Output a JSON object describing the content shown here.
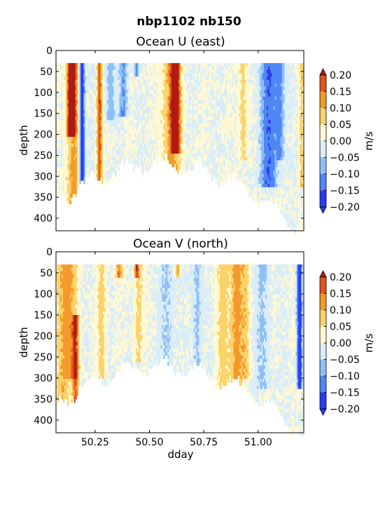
{
  "figure": {
    "suptitle": "nbp1102 nb150"
  },
  "chart_data": [
    {
      "type": "heatmap",
      "title": "Ocean U (east)",
      "xlabel": "",
      "ylabel": "depth",
      "xlim": [
        50.07,
        51.21
      ],
      "ylim": [
        430,
        0
      ],
      "xticks": [
        50.25,
        50.5,
        50.75,
        51.0
      ],
      "xtick_labels": [
        "",
        "",
        "",
        ""
      ],
      "yticks": [
        0,
        50,
        100,
        150,
        200,
        250,
        300,
        350,
        400
      ],
      "colorbar": {
        "label": "m/s",
        "levels": [
          -0.2,
          -0.15,
          -0.1,
          -0.05,
          0.0,
          0.05,
          0.1,
          0.15,
          0.2
        ],
        "tick_labels": [
          "−0.20",
          "−0.15",
          "−0.10",
          "−0.05",
          "0.00",
          "0.05",
          "0.10",
          "0.15",
          "0.20"
        ],
        "colors": [
          "#2a3cf2",
          "#4f86f4",
          "#8ec0f5",
          "#d9edf9",
          "#fff8d4",
          "#fad46a",
          "#f49a2c",
          "#e0521e",
          "#b01a12"
        ]
      },
      "features": [
        {
          "x": 50.14,
          "v": 0.22,
          "w": 0.018,
          "top": 30,
          "bottom": 200
        },
        {
          "x": 50.15,
          "v": 0.12,
          "w": 0.03,
          "top": 30,
          "bottom": 420
        },
        {
          "x": 50.19,
          "v": -0.22,
          "w": 0.012,
          "top": 30,
          "bottom": 420
        },
        {
          "x": 50.27,
          "v": 0.18,
          "w": 0.012,
          "top": 30,
          "bottom": 335
        },
        {
          "x": 50.32,
          "v": -0.08,
          "w": 0.02,
          "top": 30,
          "bottom": 160
        },
        {
          "x": 50.38,
          "v": -0.1,
          "w": 0.02,
          "top": 30,
          "bottom": 150
        },
        {
          "x": 50.44,
          "v": -0.12,
          "w": 0.01,
          "top": 30,
          "bottom": 60
        },
        {
          "x": 50.62,
          "v": 0.22,
          "w": 0.02,
          "top": 30,
          "bottom": 240
        },
        {
          "x": 50.6,
          "v": 0.12,
          "w": 0.04,
          "top": 30,
          "bottom": 320
        },
        {
          "x": 50.93,
          "v": 0.07,
          "w": 0.02,
          "top": 30,
          "bottom": 260
        },
        {
          "x": 51.05,
          "v": -0.14,
          "w": 0.04,
          "top": 30,
          "bottom": 320
        },
        {
          "x": 51.1,
          "v": -0.1,
          "w": 0.02,
          "top": 30,
          "bottom": 260
        },
        {
          "x": 51.2,
          "v": 0.08,
          "w": 0.01,
          "top": 30,
          "bottom": 320
        }
      ]
    },
    {
      "type": "heatmap",
      "title": "Ocean V (north)",
      "xlabel": "dday",
      "ylabel": "depth",
      "xlim": [
        50.07,
        51.21
      ],
      "ylim": [
        430,
        0
      ],
      "xticks": [
        50.25,
        50.5,
        50.75,
        51.0
      ],
      "xtick_labels": [
        "50.25",
        "50.50",
        "50.75",
        "51.00"
      ],
      "yticks": [
        0,
        50,
        100,
        150,
        200,
        250,
        300,
        350,
        400
      ],
      "colorbar": {
        "label": "m/s",
        "levels": [
          -0.2,
          -0.15,
          -0.1,
          -0.05,
          0.0,
          0.05,
          0.1,
          0.15,
          0.2
        ],
        "tick_labels": [
          "−0.20",
          "−0.15",
          "−0.10",
          "−0.05",
          "0.00",
          "0.05",
          "0.10",
          "0.15",
          "0.20"
        ],
        "colors": [
          "#2a3cf2",
          "#4f86f4",
          "#8ec0f5",
          "#d9edf9",
          "#fff8d4",
          "#fad46a",
          "#f49a2c",
          "#e0521e",
          "#b01a12"
        ]
      },
      "features": [
        {
          "x": 50.1,
          "v": 0.1,
          "w": 0.03,
          "top": 30,
          "bottom": 400
        },
        {
          "x": 50.16,
          "v": 0.16,
          "w": 0.015,
          "top": 150,
          "bottom": 420
        },
        {
          "x": 50.14,
          "v": 0.09,
          "w": 0.03,
          "top": 30,
          "bottom": 300
        },
        {
          "x": 50.28,
          "v": 0.07,
          "w": 0.02,
          "top": 30,
          "bottom": 300
        },
        {
          "x": 50.36,
          "v": 0.15,
          "w": 0.015,
          "top": 30,
          "bottom": 60
        },
        {
          "x": 50.44,
          "v": 0.15,
          "w": 0.01,
          "top": 30,
          "bottom": 55
        },
        {
          "x": 50.45,
          "v": 0.07,
          "w": 0.02,
          "top": 30,
          "bottom": 260
        },
        {
          "x": 50.63,
          "v": 0.12,
          "w": 0.012,
          "top": 30,
          "bottom": 60
        },
        {
          "x": 50.58,
          "v": -0.06,
          "w": 0.03,
          "top": 30,
          "bottom": 280
        },
        {
          "x": 50.72,
          "v": -0.07,
          "w": 0.02,
          "top": 30,
          "bottom": 300
        },
        {
          "x": 50.84,
          "v": 0.07,
          "w": 0.03,
          "top": 30,
          "bottom": 350
        },
        {
          "x": 50.9,
          "v": 0.13,
          "w": 0.025,
          "top": 30,
          "bottom": 350
        },
        {
          "x": 50.94,
          "v": 0.08,
          "w": 0.02,
          "top": 30,
          "bottom": 300
        },
        {
          "x": 51.02,
          "v": -0.06,
          "w": 0.03,
          "top": 30,
          "bottom": 320
        },
        {
          "x": 51.19,
          "v": -0.2,
          "w": 0.012,
          "top": 30,
          "bottom": 320
        }
      ]
    }
  ]
}
